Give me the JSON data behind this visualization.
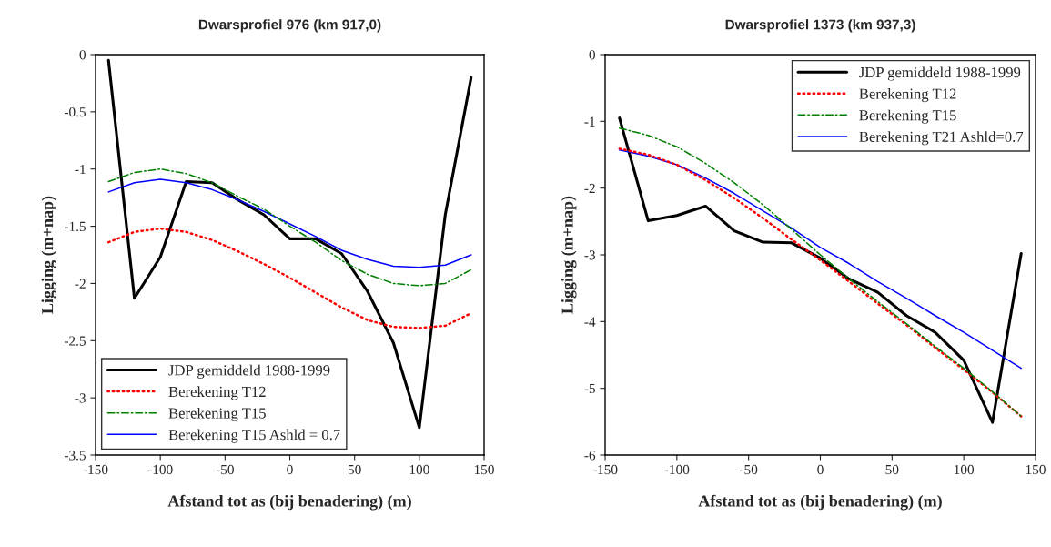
{
  "chart_data": [
    {
      "type": "line",
      "title": "Dwarsprofiel 976 (km 917,0)",
      "xlabel": "Afstand tot as (bij benadering) (m)",
      "ylabel": "Ligging (m+nap)",
      "x": [
        -140,
        -120,
        -100,
        -80,
        -60,
        -40,
        -20,
        0,
        20,
        40,
        60,
        80,
        100,
        120,
        140
      ],
      "series": [
        {
          "name": "JDP gemiddeld 1988-1999",
          "color": "#000000",
          "line_style": "solid",
          "values": [
            -0.05,
            -2.13,
            -1.77,
            -1.11,
            -1.12,
            -1.27,
            -1.4,
            -1.61,
            -1.61,
            -1.74,
            -2.07,
            -2.52,
            -3.26,
            -1.4,
            -0.2
          ]
        },
        {
          "name": "Berekening T12",
          "color": "#ff0000",
          "line_style": "dotted",
          "values": [
            -1.64,
            -1.55,
            -1.52,
            -1.55,
            -1.62,
            -1.72,
            -1.83,
            -1.95,
            -2.08,
            -2.21,
            -2.32,
            -2.38,
            -2.39,
            -2.37,
            -2.26
          ]
        },
        {
          "name": "Berekening T15",
          "color": "#008000",
          "line_style": "dashdot",
          "values": [
            -1.11,
            -1.03,
            -1.0,
            -1.04,
            -1.12,
            -1.24,
            -1.35,
            -1.5,
            -1.64,
            -1.8,
            -1.92,
            -2.0,
            -2.02,
            -2.0,
            -1.88
          ]
        },
        {
          "name": "Berekening T15 Ashld = 0.7",
          "color": "#0000ff",
          "line_style": "solid",
          "values": [
            -1.2,
            -1.12,
            -1.09,
            -1.12,
            -1.18,
            -1.27,
            -1.37,
            -1.48,
            -1.59,
            -1.71,
            -1.79,
            -1.85,
            -1.86,
            -1.84,
            -1.75
          ]
        }
      ],
      "xlim": [
        -150,
        150
      ],
      "xticks": [
        -150,
        -100,
        -50,
        0,
        50,
        100,
        150
      ],
      "ylim": [
        -3.5,
        0
      ],
      "yticks": [
        -3.5,
        -3,
        -2.5,
        -2,
        -1.5,
        -1,
        -0.5,
        0
      ],
      "grid": false,
      "legend": "bottom left"
    },
    {
      "type": "line",
      "title": "Dwarsprofiel 1373 (km 937,3)",
      "xlabel": "Afstand tot as (bij benadering) (m)",
      "ylabel": "Ligging (m+nap)",
      "x": [
        -140,
        -120,
        -100,
        -80,
        -60,
        -40,
        -20,
        0,
        20,
        40,
        60,
        80,
        100,
        120,
        140
      ],
      "series": [
        {
          "name": "JDP gemiddeld 1988-1999",
          "color": "#000000",
          "line_style": "solid",
          "values": [
            -0.95,
            -2.49,
            -2.41,
            -2.27,
            -2.64,
            -2.81,
            -2.82,
            -3.05,
            -3.36,
            -3.56,
            -3.91,
            -4.16,
            -4.58,
            -5.51,
            -2.98
          ]
        },
        {
          "name": "Berekening T12",
          "color": "#ff0000",
          "line_style": "dotted",
          "values": [
            -1.41,
            -1.5,
            -1.65,
            -1.88,
            -2.15,
            -2.45,
            -2.77,
            -3.08,
            -3.4,
            -3.73,
            -4.05,
            -4.39,
            -4.72,
            -5.06,
            -5.42
          ]
        },
        {
          "name": "Berekening T15",
          "color": "#008000",
          "line_style": "dashdot",
          "values": [
            -1.1,
            -1.21,
            -1.38,
            -1.63,
            -1.92,
            -2.25,
            -2.62,
            -3.0,
            -3.36,
            -3.7,
            -4.03,
            -4.37,
            -4.7,
            -5.05,
            -5.42
          ]
        },
        {
          "name": "Berekening T21 Ashld=0.7",
          "color": "#0000ff",
          "line_style": "solid",
          "values": [
            -1.43,
            -1.52,
            -1.65,
            -1.85,
            -2.08,
            -2.34,
            -2.6,
            -2.89,
            -3.13,
            -3.4,
            -3.65,
            -3.91,
            -4.16,
            -4.43,
            -4.7
          ]
        }
      ],
      "xlim": [
        -150,
        150
      ],
      "xticks": [
        -150,
        -100,
        -50,
        0,
        50,
        100,
        150
      ],
      "ylim": [
        -6,
        0
      ],
      "yticks": [
        -6,
        -5,
        -4,
        -3,
        -2,
        -1,
        0
      ],
      "grid": false,
      "legend": "top right"
    }
  ]
}
